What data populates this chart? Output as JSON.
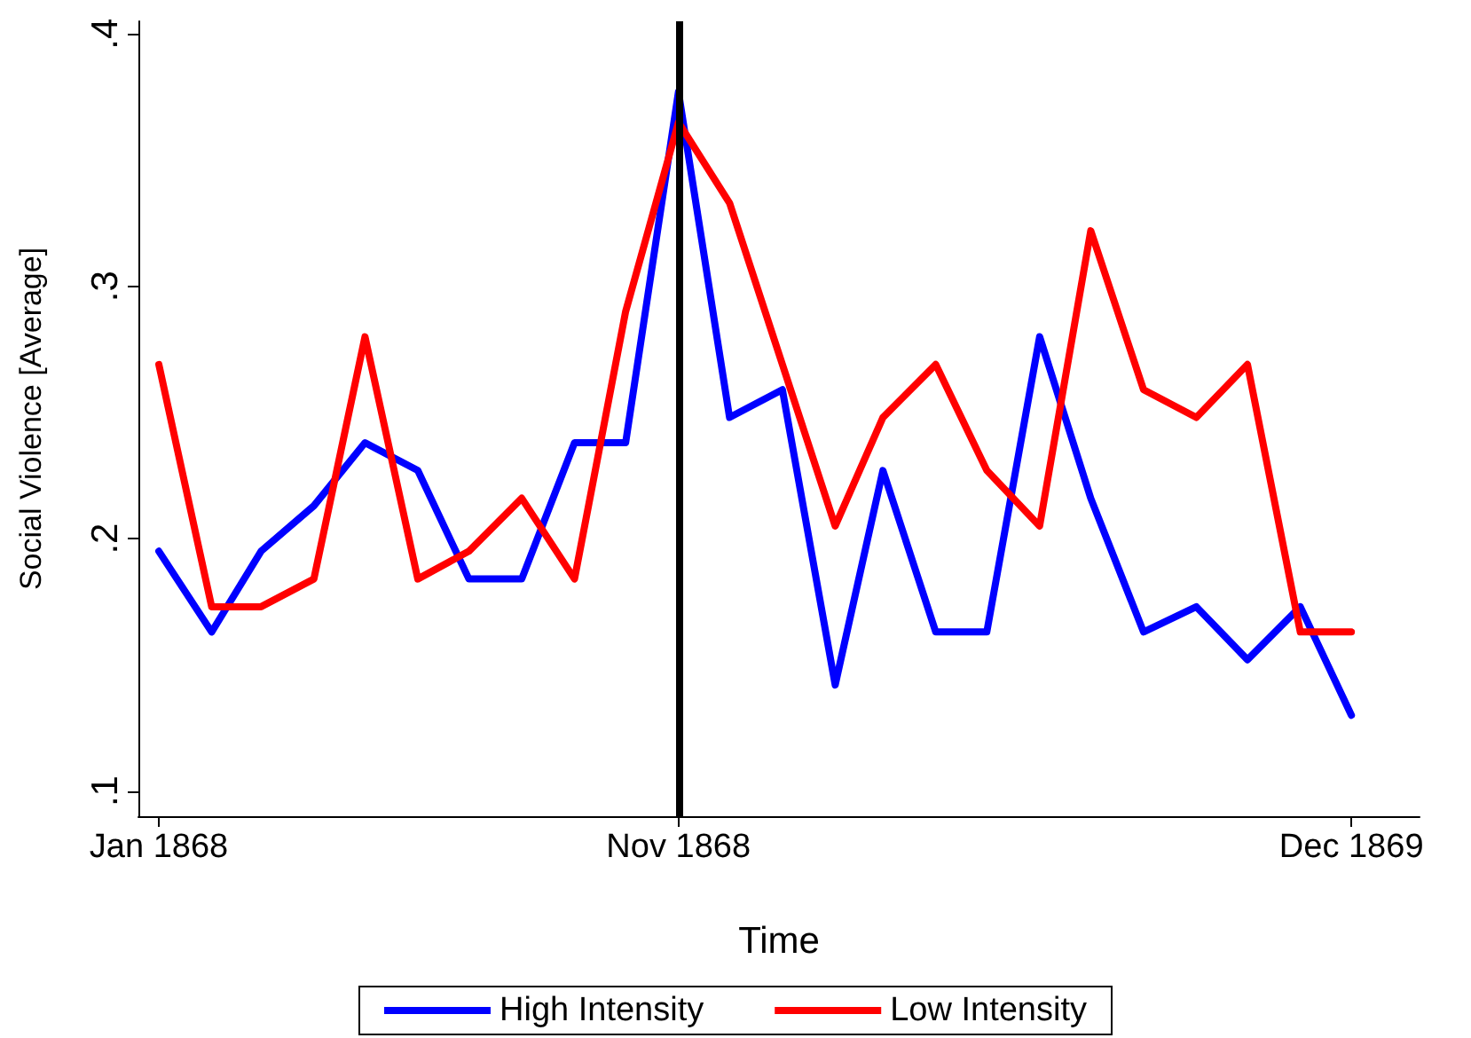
{
  "chart_data": {
    "type": "line",
    "xlabel": "Time",
    "ylabel": "Social Violence [Average]",
    "x": [
      "1868-01",
      "1868-02",
      "1868-03",
      "1868-04",
      "1868-05",
      "1868-06",
      "1868-07",
      "1868-08",
      "1868-09",
      "1868-10",
      "1868-11",
      "1868-12",
      "1869-01",
      "1869-02",
      "1869-03",
      "1869-04",
      "1869-05",
      "1869-06",
      "1869-07",
      "1869-08",
      "1869-09",
      "1869-10",
      "1869-11",
      "1869-12"
    ],
    "series": [
      {
        "name": "High Intensity",
        "color": "#0000ff",
        "values": [
          0.195,
          0.163,
          0.195,
          0.213,
          0.238,
          0.227,
          0.184,
          0.184,
          0.238,
          0.238,
          0.377,
          0.248,
          0.259,
          0.142,
          0.227,
          0.163,
          0.163,
          0.28,
          0.216,
          0.163,
          0.173,
          0.152,
          0.173,
          0.13
        ]
      },
      {
        "name": "Low Intensity",
        "color": "#ff0000",
        "values": [
          0.269,
          0.173,
          0.173,
          0.184,
          0.28,
          0.184,
          0.195,
          0.216,
          0.184,
          0.29,
          0.365,
          0.333,
          0.269,
          0.205,
          0.248,
          0.269,
          0.227,
          0.205,
          0.322,
          0.259,
          0.248,
          0.269,
          0.163,
          0.163
        ]
      }
    ],
    "xlim": [
      "1867-12-20",
      "1870-01-10"
    ],
    "xticks": [
      {
        "value": "1868-01",
        "label": "Jan 1868"
      },
      {
        "value": "1868-11",
        "label": "Nov 1868"
      },
      {
        "value": "1869-12",
        "label": "Dec 1869"
      }
    ],
    "ylim": [
      0.09,
      0.405
    ],
    "yticks": [
      {
        "value": 0.1,
        "label": ".1"
      },
      {
        "value": 0.2,
        "label": ".2"
      },
      {
        "value": 0.3,
        "label": ".3"
      },
      {
        "value": 0.4,
        "label": ".4"
      }
    ],
    "ref_lines": [
      {
        "axis": "x",
        "value": "1868-11",
        "color": "#000000"
      }
    ],
    "grid": false,
    "legend": "bottom",
    "marker": "none",
    "line_style": "solid"
  }
}
